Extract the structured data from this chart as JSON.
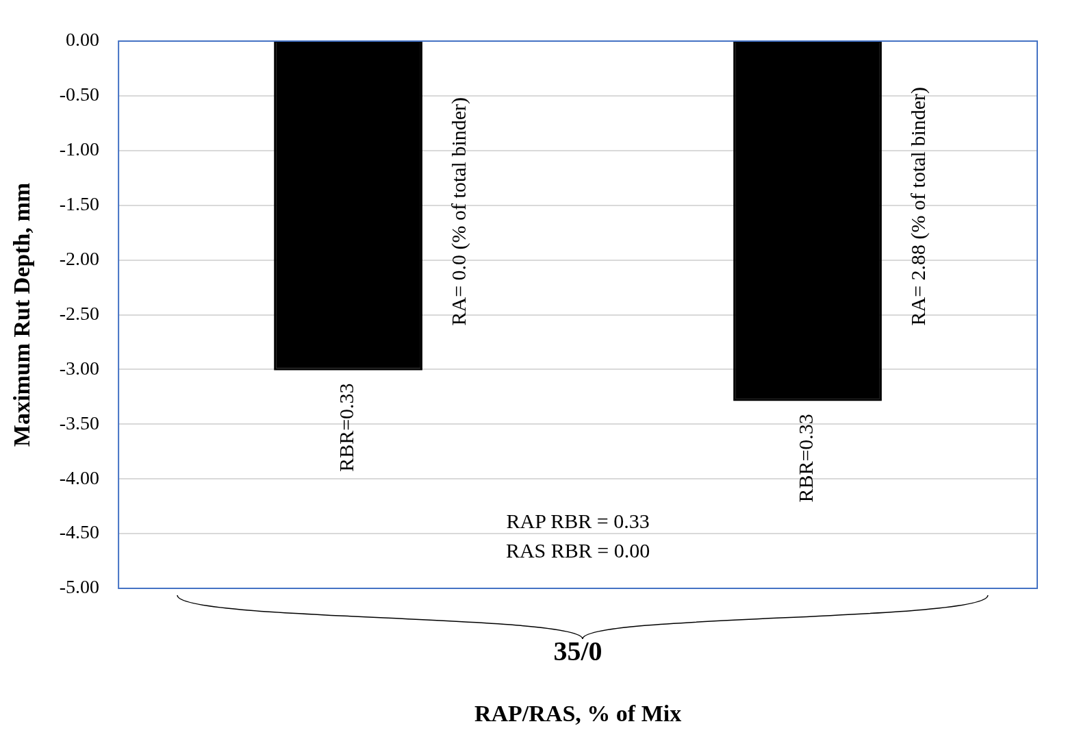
{
  "chart_data": {
    "type": "bar",
    "categories": [
      null,
      null
    ],
    "series": [
      {
        "color": "#000000",
        "values": [
          -3.0,
          -3.28
        ]
      }
    ],
    "ylabel": "Maximum Rut Depth, mm",
    "xlabel": "RAP/RAS, % of Mix",
    "ylim": [
      -5,
      0
    ],
    "yticks": [
      {
        "value": -5,
        "label": "-5.00"
      },
      {
        "value": -4.5,
        "label": "-4.50"
      },
      {
        "value": -4,
        "label": "-4.00"
      },
      {
        "value": -3.5,
        "label": "-3.50"
      },
      {
        "value": -3,
        "label": "-3.00"
      },
      {
        "value": -2.5,
        "label": "-2.50"
      },
      {
        "value": -2,
        "label": "-2.00"
      },
      {
        "value": -1.5,
        "label": "-1.50"
      },
      {
        "value": -1,
        "label": "-1.00"
      },
      {
        "value": -0.5,
        "label": "-0.50"
      },
      {
        "value": 0,
        "label": "0.00"
      }
    ],
    "grid": "y",
    "legend": false,
    "annotations": [
      "RA= 0.0 (% of total binder)",
      "RBR=0.33",
      "RA= 2.88 (% of total binder)",
      "RBR=0.33",
      "RAP RBR = 0.33\nRAS RBR = 0.00",
      "35/0"
    ]
  }
}
